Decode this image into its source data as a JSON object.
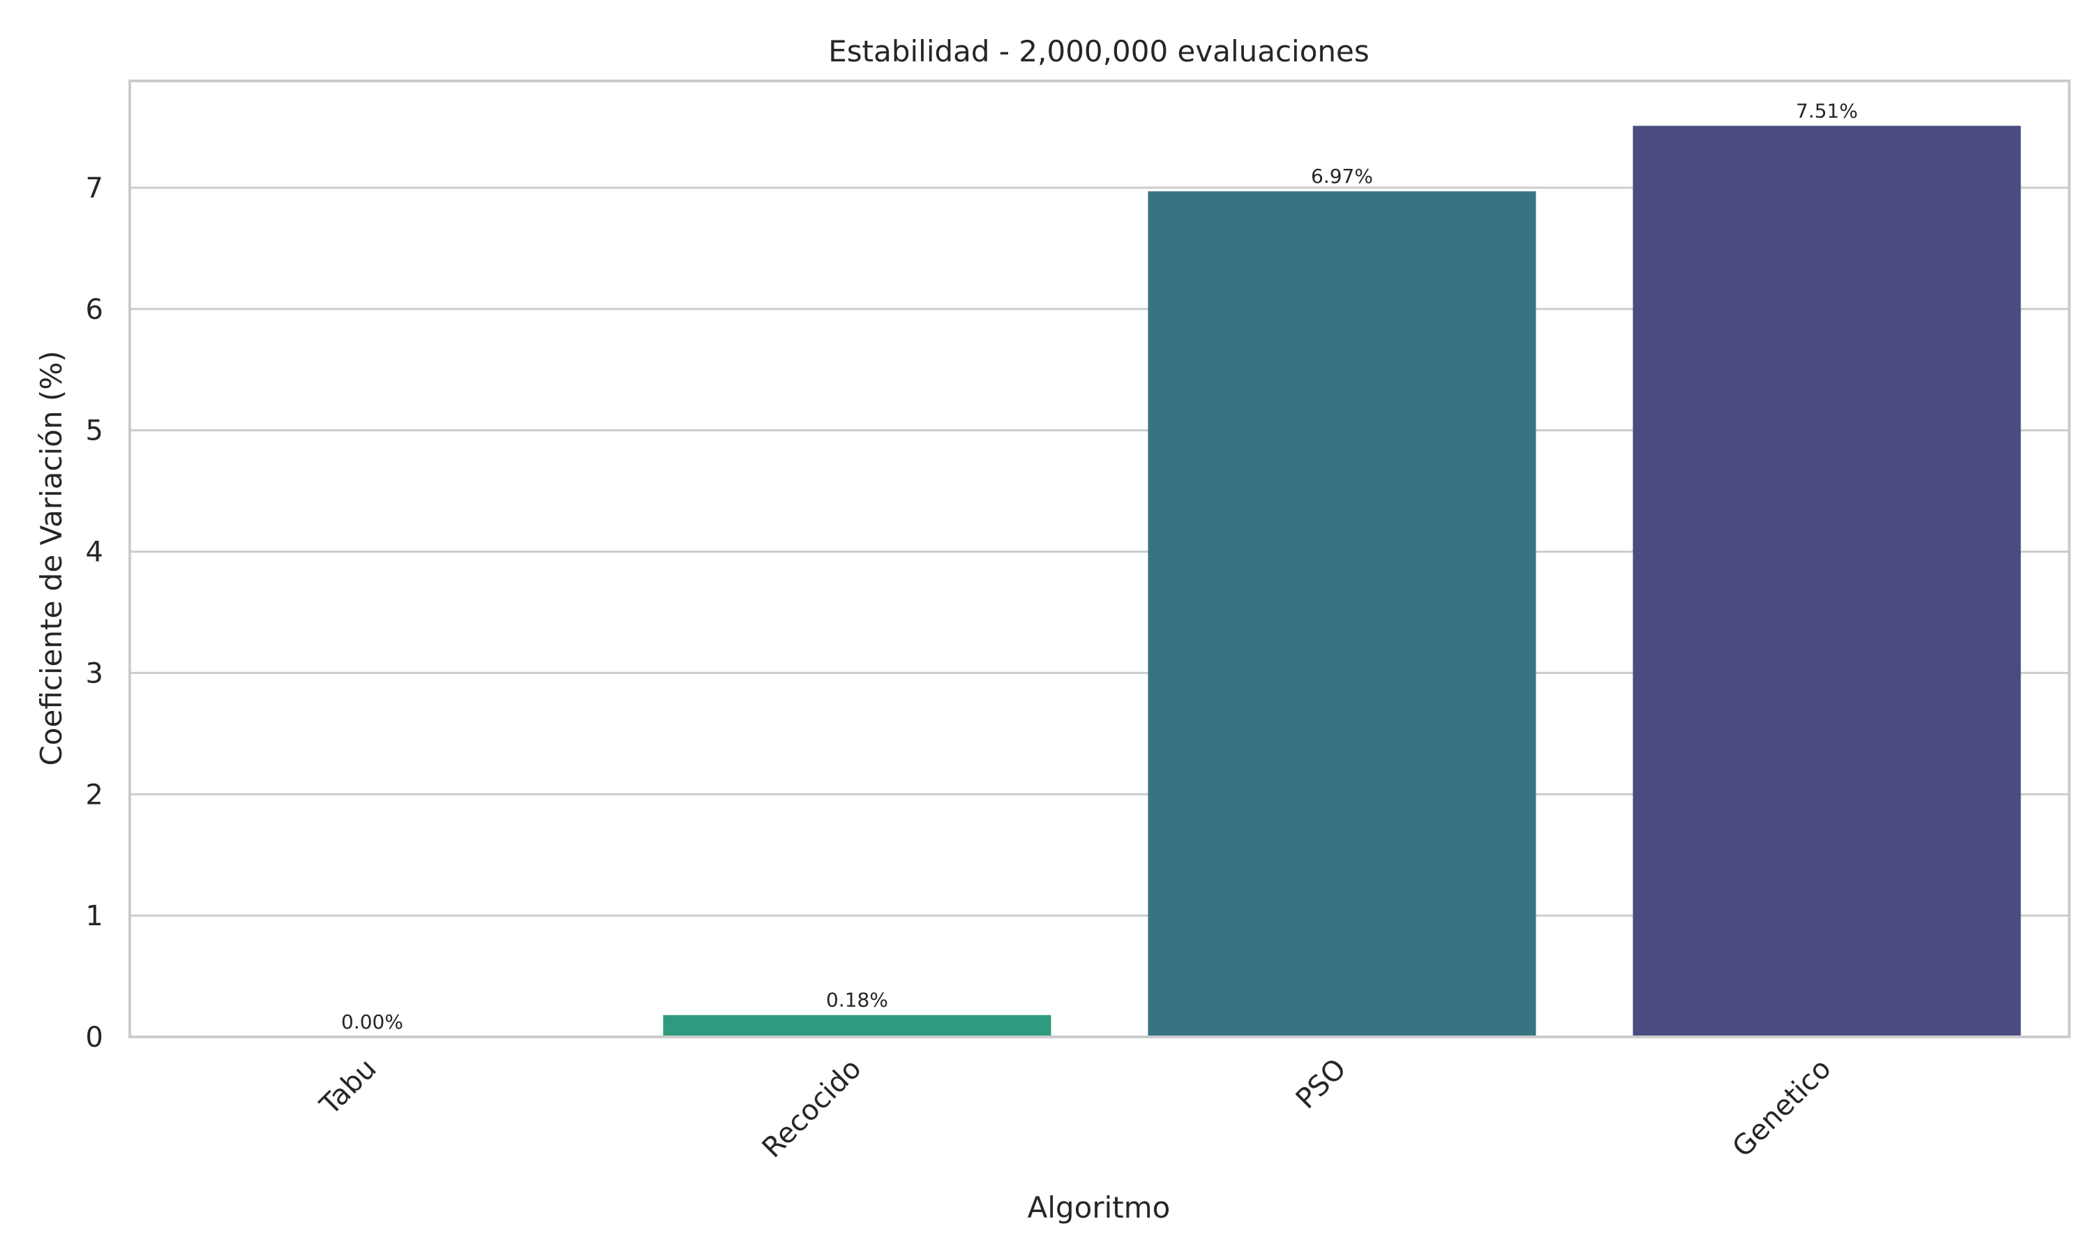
{
  "chart_data": {
    "type": "bar",
    "title": "Estabilidad - 2,000,000 evaluaciones",
    "xlabel": "Algoritmo",
    "ylabel": "Coeficiente de Variación (%)",
    "categories": [
      "Tabu",
      "Recocido",
      "PSO",
      "Genetico"
    ],
    "values": [
      0.0,
      0.18,
      6.97,
      7.51
    ],
    "data_labels": [
      "0.00%",
      "0.18%",
      "6.97%",
      "7.51%"
    ],
    "colors": [
      "#3fbc73",
      "#2f9a7d",
      "#367383",
      "#4a4c7f"
    ],
    "yticks": [
      0,
      1,
      2,
      3,
      4,
      5,
      6,
      7
    ],
    "ylim": [
      0,
      7.88
    ],
    "grid": true,
    "legend": "none"
  }
}
